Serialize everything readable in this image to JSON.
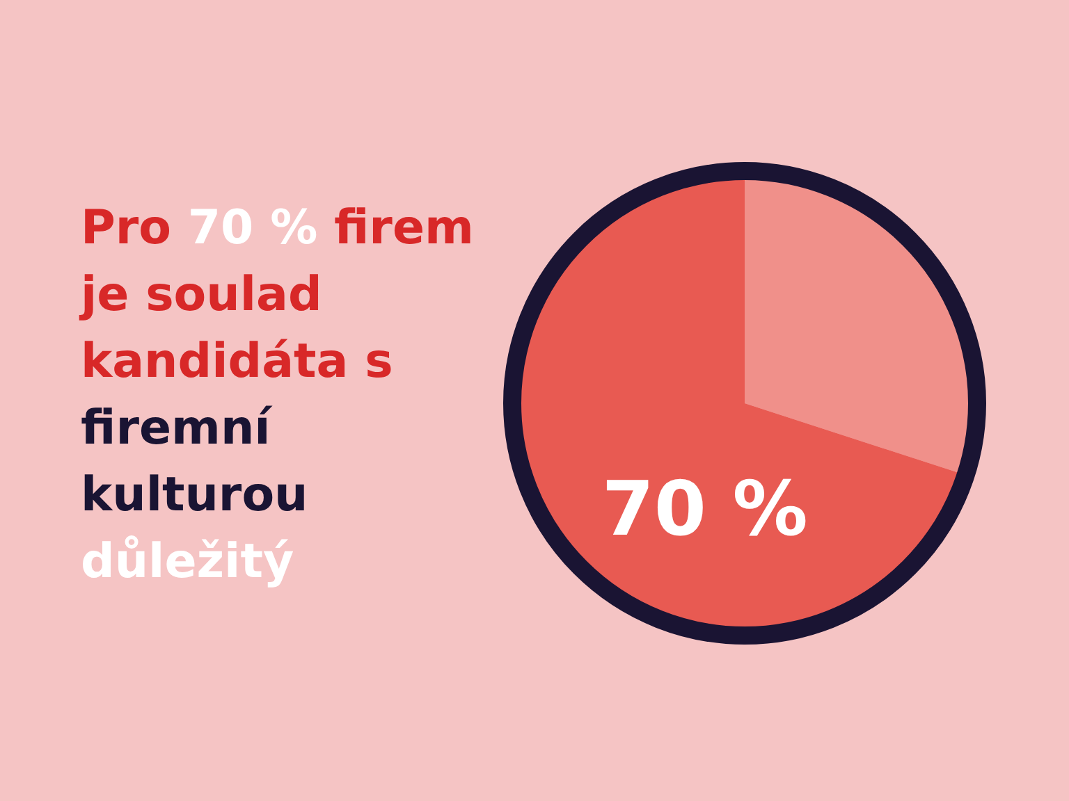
{
  "chart_data": {
    "type": "pie",
    "title": "Pro 70 % firem je soulad kandidáta s firemní kulturou důležitý",
    "categories": [
      null,
      null
    ],
    "values": [
      30,
      70
    ],
    "colors": [
      "#f0908a",
      "#e85a52"
    ],
    "value_labels": [
      null,
      "70 %"
    ],
    "legend": false
  }
}
